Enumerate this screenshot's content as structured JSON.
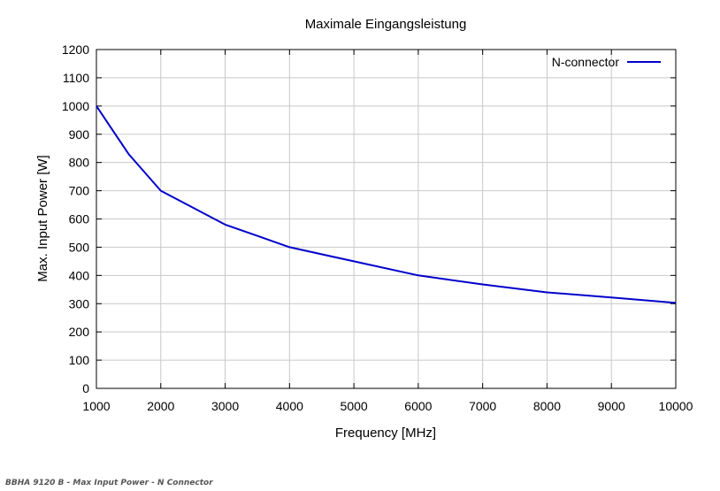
{
  "chart_data": {
    "type": "line",
    "title": "Maximale Eingangsleistung",
    "xlabel": "Frequency [MHz]",
    "ylabel": "Max. Input Power [W]",
    "xlim": [
      1000,
      10000
    ],
    "ylim": [
      0,
      1200
    ],
    "xticks": [
      1000,
      2000,
      3000,
      4000,
      5000,
      6000,
      7000,
      8000,
      9000,
      10000
    ],
    "yticks": [
      0,
      100,
      200,
      300,
      400,
      500,
      600,
      700,
      800,
      900,
      1000,
      1100,
      1200
    ],
    "grid": true,
    "legend_position": "top-right",
    "series": [
      {
        "name": "N-connector",
        "color": "#0000cc",
        "x": [
          1000,
          1500,
          2000,
          2500,
          3000,
          3500,
          4000,
          5000,
          6000,
          7000,
          8000,
          9000,
          10000
        ],
        "y": [
          1000,
          830,
          700,
          640,
          580,
          540,
          500,
          450,
          400,
          368,
          340,
          322,
          303
        ]
      }
    ]
  },
  "caption": "BBHA 9120 B - Max Input Power - N Connector"
}
